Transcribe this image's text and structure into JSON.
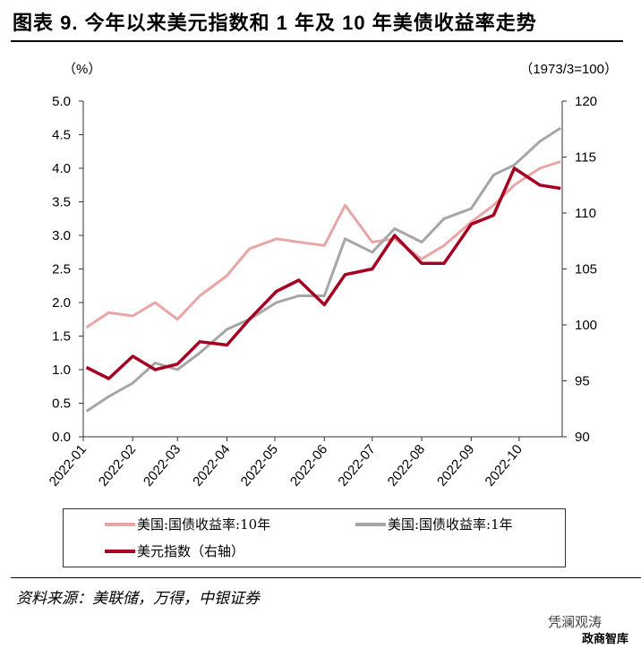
{
  "title": "图表 9. 今年以来美元指数和 1 年及 10 年美债收益率走势",
  "source": "资料来源：美联储，万得，中银证券",
  "watermark": {
    "line1": "凭澜观涛",
    "line2": "政商智库"
  },
  "chart_data": {
    "type": "line",
    "left_axis": {
      "unit_label": "（%）",
      "range": [
        0,
        5
      ],
      "ticks": [
        "0.0",
        "0.5",
        "1.0",
        "1.5",
        "2.0",
        "2.5",
        "3.0",
        "3.5",
        "4.0",
        "4.5",
        "5.0"
      ]
    },
    "right_axis": {
      "unit_label": "（1973/3=100）",
      "range": [
        90,
        120
      ],
      "ticks": [
        "90",
        "95",
        "100",
        "105",
        "110",
        "115",
        "120"
      ]
    },
    "x_range": [
      "2022-01-01",
      "2022-10-28"
    ],
    "x_ticks": [
      "2022-01",
      "2022-02",
      "2022-03",
      "2022-04",
      "2022-05",
      "2022-06",
      "2022-07",
      "2022-08",
      "2022-09",
      "2022-10"
    ],
    "grid": false,
    "legend_position": "bottom",
    "x": [
      "2022-01-03",
      "2022-01-17",
      "2022-02-01",
      "2022-02-15",
      "2022-03-01",
      "2022-03-15",
      "2022-04-01",
      "2022-04-15",
      "2022-05-02",
      "2022-05-16",
      "2022-06-01",
      "2022-06-14",
      "2022-07-01",
      "2022-07-15",
      "2022-08-01",
      "2022-08-15",
      "2022-09-01",
      "2022-09-15",
      "2022-09-28",
      "2022-10-14",
      "2022-10-27"
    ],
    "series": [
      {
        "name": "美国:国债收益率:10年",
        "axis": "left",
        "color": "#e8a6a6",
        "values": [
          1.63,
          1.85,
          1.8,
          2.0,
          1.75,
          2.1,
          2.4,
          2.8,
          2.95,
          2.9,
          2.85,
          3.45,
          2.9,
          2.95,
          2.65,
          2.85,
          3.2,
          3.45,
          3.75,
          4.0,
          4.1
        ]
      },
      {
        "name": "美国:国债收益率:1年",
        "axis": "left",
        "color": "#a6a6a6",
        "values": [
          0.38,
          0.6,
          0.8,
          1.1,
          1.0,
          1.25,
          1.6,
          1.75,
          2.0,
          2.1,
          2.1,
          2.95,
          2.75,
          3.1,
          2.9,
          3.25,
          3.4,
          3.9,
          4.05,
          4.4,
          4.6
        ]
      },
      {
        "name": "美元指数（右轴）",
        "axis": "right",
        "color": "#a50021",
        "values": [
          96.2,
          95.2,
          97.2,
          96.0,
          96.5,
          98.5,
          98.2,
          100.5,
          103.0,
          104.0,
          101.8,
          104.5,
          105.0,
          108.0,
          105.5,
          105.5,
          109.0,
          109.8,
          114.0,
          112.5,
          112.2
        ]
      }
    ]
  }
}
